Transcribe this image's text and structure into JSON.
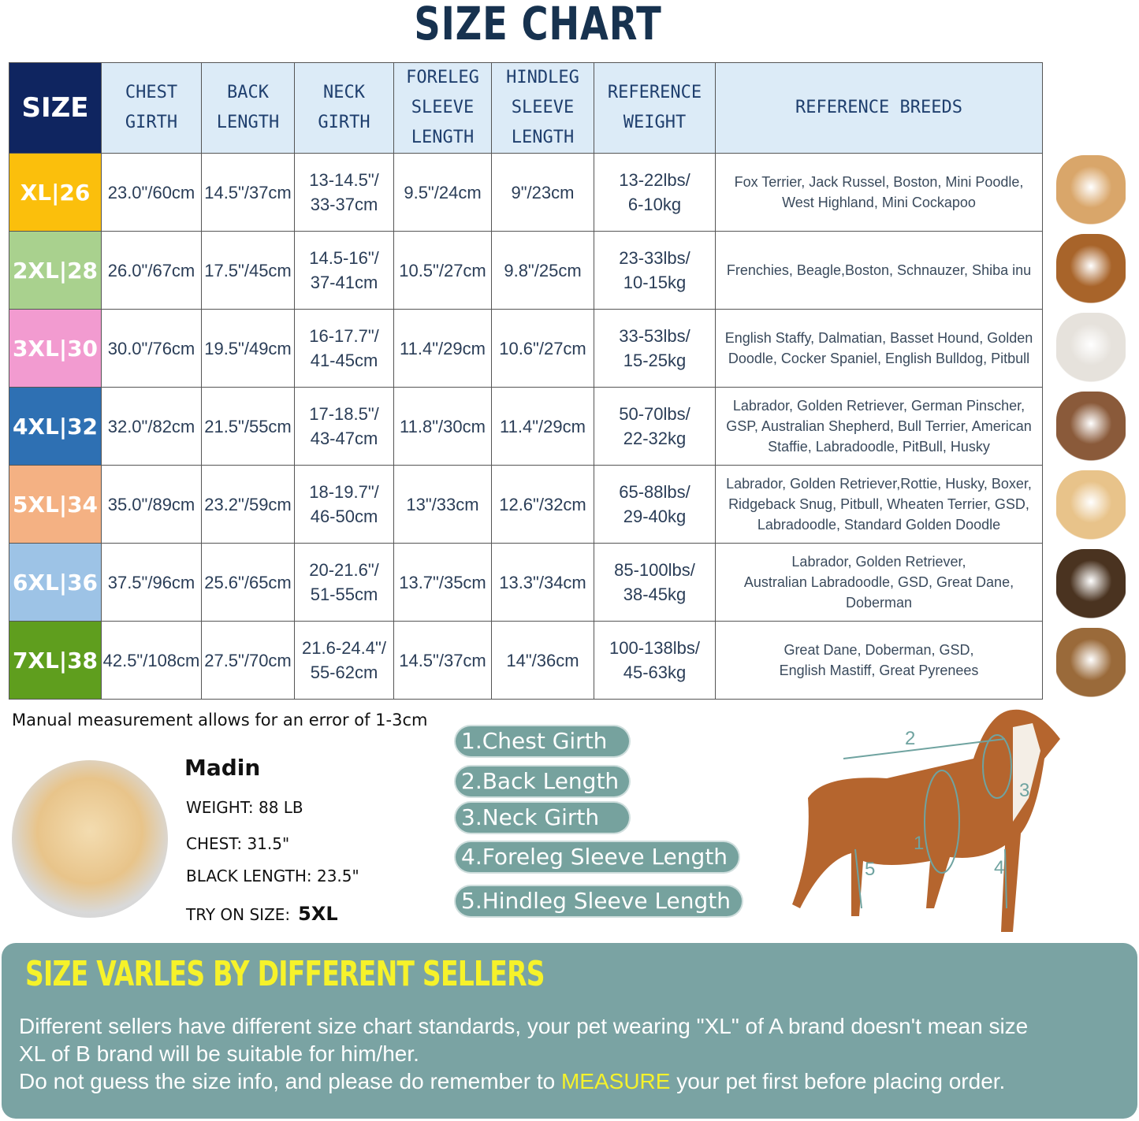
{
  "title": "SIZE CHART",
  "table": {
    "headers": [
      "SIZE",
      "CHEST\nGIRTH",
      "BACK\nLENGTH",
      "NECK\nGIRTH",
      "FORELEG\nSLEEVE\nLENGTH",
      "HINDLEG\nSLEEVE\nLENGTH",
      "REFERENCE\nWEIGHT",
      "REFERENCE  BREEDS"
    ],
    "rows": [
      {
        "size": "XL|26",
        "color": "#fbbf0c",
        "chest": "23.0\"/60cm",
        "back": "14.5\"/37cm",
        "neck": "13-14.5\"/\n33-37cm",
        "foreleg": "9.5\"/24cm",
        "hindleg": "9\"/23cm",
        "weight": "13-22lbs/\n6-10kg",
        "breeds": "Fox Terrier, Jack Russel, Boston, Mini Poodle,\nWest Highland, Mini Cockapoo"
      },
      {
        "size": "2XL|28",
        "color": "#a9d18e",
        "chest": "26.0\"/67cm",
        "back": "17.5\"/45cm",
        "neck": "14.5-16\"/\n37-41cm",
        "foreleg": "10.5\"/27cm",
        "hindleg": "9.8\"/25cm",
        "weight": "23-33lbs/\n10-15kg",
        "breeds": "Frenchies, Beagle,Boston, Schnauzer, Shiba inu"
      },
      {
        "size": "3XL|30",
        "color": "#f29bd0",
        "chest": "30.0\"/76cm",
        "back": "19.5\"/49cm",
        "neck": "16-17.7\"/\n41-45cm",
        "foreleg": "11.4\"/29cm",
        "hindleg": "10.6\"/27cm",
        "weight": "33-53lbs/\n15-25kg",
        "breeds": "English Staffy, Dalmatian, Basset Hound, Golden\nDoodle, Cocker Spaniel, English Bulldog, Pitbull"
      },
      {
        "size": "4XL|32",
        "color": "#2e70b3",
        "chest": "32.0\"/82cm",
        "back": "21.5\"/55cm",
        "neck": "17-18.5\"/\n43-47cm",
        "foreleg": "11.8\"/30cm",
        "hindleg": "11.4\"/29cm",
        "weight": "50-70lbs/\n22-32kg",
        "breeds": "Labrador, Golden Retriever, German Pinscher,\nGSP, Australian Shepherd, Bull Terrier, American\nStaffie, Labradoodle, PitBull, Husky"
      },
      {
        "size": "5XL|34",
        "color": "#f4b183",
        "chest": "35.0\"/89cm",
        "back": "23.2\"/59cm",
        "neck": "18-19.7\"/\n46-50cm",
        "foreleg": "13\"/33cm",
        "hindleg": "12.6\"/32cm",
        "weight": "65-88lbs/\n29-40kg",
        "breeds": "Labrador, Golden Retriever,Rottie, Husky, Boxer,\nRidgeback Snug, Pitbull, Wheaten Terrier, GSD,\nLabradoodle,  Standard Golden Doodle"
      },
      {
        "size": "6XL|36",
        "color": "#9dc3e6",
        "chest": "37.5\"/96cm",
        "back": "25.6\"/65cm",
        "neck": "20-21.6\"/\n51-55cm",
        "foreleg": "13.7\"/35cm",
        "hindleg": "13.3\"/34cm",
        "weight": "85-100lbs/\n38-45kg",
        "breeds": "Labrador, Golden Retriever,\nAustralian Labradoodle, GSD, Great Dane,\nDoberman"
      },
      {
        "size": "7XL|38",
        "color": "#5f9e1e",
        "chest": "42.5\"/108cm",
        "back": "27.5\"/70cm",
        "neck": "21.6-24.4\"/\n55-62cm",
        "foreleg": "14.5\"/37cm",
        "hindleg": "14\"/36cm",
        "weight": "100-138lbs/\n45-63kg",
        "breeds": "Great Dane, Doberman, GSD,\nEnglish Mastiff, Great Pyrenees"
      }
    ]
  },
  "dog_photos": [
    "#d9a66a",
    "#a8642a",
    "#e6e2dc",
    "#8a5a3a",
    "#e8c38a",
    "#4a3320",
    "#9a6a3a"
  ],
  "note": "Manual measurement allows for an error of 1-3cm",
  "example": {
    "name": "Madin",
    "weight": "WEIGHT: 88 LB",
    "chest": "CHEST: 31.5\"",
    "back": "BLACK LENGTH: 23.5\"",
    "try_label": "TRY ON SIZE:",
    "try_size": "5XL"
  },
  "measurements": [
    "1.Chest Girth",
    "2.Back Length",
    "3.Neck Girth",
    "4.Foreleg Sleeve Length",
    "5.Hindleg Sleeve Length"
  ],
  "diagram_labels": [
    "1",
    "2",
    "3",
    "4",
    "5"
  ],
  "banner": {
    "heading": "SIZE VARLES BY DIFFERENT SELLERS",
    "line1": "Different sellers have different size chart standards, your pet wearing \"XL\" of A brand doesn't mean size",
    "line2": " XL of B brand will be suitable for him/her.",
    "line3_pre": "Do not guess the size info, and please do remember to ",
    "line3_hl": "MEASURE",
    "line3_post": " your pet first before placing order."
  }
}
